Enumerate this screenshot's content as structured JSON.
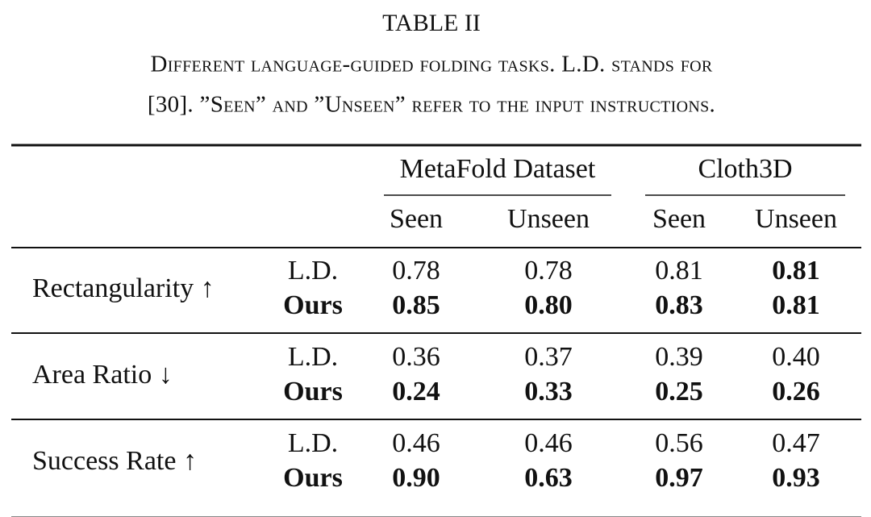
{
  "title": "TABLE II",
  "caption": {
    "lines": [
      "Different language-guided folding tasks. L.D. stands for",
      "[30]. ”Seen” and ”Unseen” refer to the input instructions."
    ]
  },
  "table": {
    "groups": [
      "MetaFold Dataset",
      "Cloth3D"
    ],
    "subheaders": [
      "Seen",
      "Unseen",
      "Seen",
      "Unseen"
    ],
    "rows": [
      {
        "metric": "Rectangularity ↑",
        "entries": [
          {
            "method": "L.D.",
            "method_bold": false,
            "values": [
              "0.78",
              "0.78",
              "0.81",
              "0.81"
            ],
            "bold": [
              false,
              false,
              false,
              true
            ]
          },
          {
            "method": "Ours",
            "method_bold": true,
            "values": [
              "0.85",
              "0.80",
              "0.83",
              "0.81"
            ],
            "bold": [
              true,
              true,
              true,
              true
            ]
          }
        ]
      },
      {
        "metric": "Area Ratio ↓",
        "entries": [
          {
            "method": "L.D.",
            "method_bold": false,
            "values": [
              "0.36",
              "0.37",
              "0.39",
              "0.40"
            ],
            "bold": [
              false,
              false,
              false,
              false
            ]
          },
          {
            "method": "Ours",
            "method_bold": true,
            "values": [
              "0.24",
              "0.33",
              "0.25",
              "0.26"
            ],
            "bold": [
              true,
              true,
              true,
              true
            ]
          }
        ]
      },
      {
        "metric": "Success Rate ↑",
        "entries": [
          {
            "method": "L.D.",
            "method_bold": false,
            "values": [
              "0.46",
              "0.46",
              "0.56",
              "0.47"
            ],
            "bold": [
              false,
              false,
              false,
              false
            ]
          },
          {
            "method": "Ours",
            "method_bold": true,
            "values": [
              "0.90",
              "0.63",
              "0.97",
              "0.93"
            ],
            "bold": [
              true,
              true,
              true,
              true
            ]
          }
        ]
      }
    ]
  }
}
